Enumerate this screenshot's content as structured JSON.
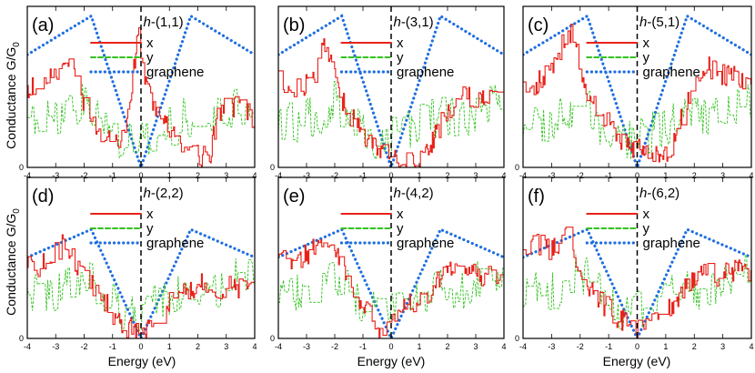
{
  "chart_data": {
    "type": "line",
    "layout": "2x3 panel grid",
    "ylabel": "Conductance G/G0",
    "ylabel_main": "Conductance G/G",
    "ylabel_subscript": "0",
    "xlabel": "Energy (eV)",
    "xlim": [
      -4,
      4
    ],
    "xticks": [
      -4,
      -3,
      -2,
      -1,
      0,
      1,
      2,
      3,
      4
    ],
    "ylim": [
      0,
      1
    ],
    "ytick_label": "0",
    "fermi_line_x": 0,
    "legend_entries": [
      "x",
      "y",
      "graphene"
    ],
    "series_colors": {
      "x": "#e8221b",
      "y": "#33c21f",
      "graphene": "#1f6fe0"
    },
    "panels": [
      {
        "label": "(a)",
        "title_italic": "h",
        "title_rest": "-(1,1)",
        "graphene_scale": 1.0,
        "seed": 11,
        "x_anchors": [
          [
            -4,
            0.48
          ],
          [
            -3.5,
            0.52
          ],
          [
            -3.0,
            0.6
          ],
          [
            -2.6,
            0.7
          ],
          [
            -2.4,
            0.62
          ],
          [
            -2.2,
            0.5
          ],
          [
            -1.9,
            0.35
          ],
          [
            -1.6,
            0.25
          ],
          [
            -1.3,
            0.2
          ],
          [
            -1.0,
            0.18
          ],
          [
            -0.7,
            0.15
          ],
          [
            -0.5,
            0.3
          ],
          [
            -0.3,
            0.55
          ],
          [
            -0.1,
            0.82
          ],
          [
            0.1,
            0.6
          ],
          [
            0.4,
            0.4
          ],
          [
            0.8,
            0.28
          ],
          [
            1.2,
            0.2
          ],
          [
            1.6,
            0.12
          ],
          [
            2.0,
            0.08
          ],
          [
            2.4,
            0.04
          ],
          [
            2.7,
            0.35
          ],
          [
            3.2,
            0.38
          ],
          [
            3.6,
            0.35
          ],
          [
            4,
            0.3
          ]
        ]
      },
      {
        "label": "(b)",
        "title_italic": "h",
        "title_rest": "-(3,1)",
        "graphene_scale": 1.0,
        "seed": 23,
        "x_anchors": [
          [
            -4,
            0.55
          ],
          [
            -3.5,
            0.5
          ],
          [
            -3.0,
            0.52
          ],
          [
            -2.6,
            0.62
          ],
          [
            -2.4,
            0.8
          ],
          [
            -2.2,
            0.72
          ],
          [
            -1.9,
            0.5
          ],
          [
            -1.6,
            0.35
          ],
          [
            -1.3,
            0.28
          ],
          [
            -1.0,
            0.2
          ],
          [
            -0.7,
            0.15
          ],
          [
            -0.4,
            0.1
          ],
          [
            0,
            0.06
          ],
          [
            0.5,
            0.04
          ],
          [
            1.0,
            0.02
          ],
          [
            1.4,
            0.15
          ],
          [
            1.8,
            0.28
          ],
          [
            2.2,
            0.4
          ],
          [
            2.6,
            0.45
          ],
          [
            3.0,
            0.4
          ],
          [
            3.5,
            0.42
          ],
          [
            4,
            0.4
          ]
        ]
      },
      {
        "label": "(c)",
        "title_italic": "h",
        "title_rest": "-(5,1)",
        "graphene_scale": 1.0,
        "seed": 37,
        "x_anchors": [
          [
            -4,
            0.55
          ],
          [
            -3.6,
            0.5
          ],
          [
            -3.2,
            0.58
          ],
          [
            -2.8,
            0.7
          ],
          [
            -2.4,
            0.85
          ],
          [
            -2.2,
            0.8
          ],
          [
            -1.9,
            0.55
          ],
          [
            -1.6,
            0.4
          ],
          [
            -1.2,
            0.3
          ],
          [
            -0.8,
            0.22
          ],
          [
            -0.4,
            0.15
          ],
          [
            0,
            0.12
          ],
          [
            0.4,
            0.1
          ],
          [
            0.9,
            0.05
          ],
          [
            1.2,
            0.12
          ],
          [
            1.6,
            0.35
          ],
          [
            2.0,
            0.55
          ],
          [
            2.5,
            0.62
          ],
          [
            3.0,
            0.58
          ],
          [
            3.5,
            0.56
          ],
          [
            4,
            0.52
          ]
        ]
      },
      {
        "label": "(d)",
        "title_italic": "h",
        "title_rest": "-(2,2)",
        "graphene_scale": 0.72,
        "seed": 41,
        "x_anchors": [
          [
            -4,
            0.5
          ],
          [
            -3.6,
            0.45
          ],
          [
            -3.2,
            0.48
          ],
          [
            -2.8,
            0.58
          ],
          [
            -2.5,
            0.55
          ],
          [
            -2.2,
            0.42
          ],
          [
            -1.9,
            0.35
          ],
          [
            -1.6,
            0.32
          ],
          [
            -1.3,
            0.25
          ],
          [
            -1.0,
            0.15
          ],
          [
            -0.7,
            0.1
          ],
          [
            -0.3,
            0.05
          ],
          [
            0,
            0.02
          ],
          [
            0.4,
            0.08
          ],
          [
            0.8,
            0.18
          ],
          [
            1.2,
            0.3
          ],
          [
            1.6,
            0.28
          ],
          [
            2.0,
            0.34
          ],
          [
            2.4,
            0.32
          ],
          [
            2.8,
            0.3
          ],
          [
            3.2,
            0.32
          ],
          [
            3.6,
            0.3
          ],
          [
            4,
            0.28
          ]
        ]
      },
      {
        "label": "(e)",
        "title_italic": "h",
        "title_rest": "-(4,2)",
        "graphene_scale": 0.72,
        "seed": 53,
        "x_anchors": [
          [
            -4,
            0.55
          ],
          [
            -3.6,
            0.48
          ],
          [
            -3.2,
            0.5
          ],
          [
            -2.8,
            0.55
          ],
          [
            -2.4,
            0.6
          ],
          [
            -2.2,
            0.55
          ],
          [
            -1.9,
            0.5
          ],
          [
            -1.6,
            0.42
          ],
          [
            -1.3,
            0.3
          ],
          [
            -1.0,
            0.22
          ],
          [
            -0.7,
            0.12
          ],
          [
            -0.4,
            0.05
          ],
          [
            -0.2,
            0.02
          ],
          [
            0.2,
            0.2
          ],
          [
            0.6,
            0.25
          ],
          [
            1.0,
            0.22
          ],
          [
            1.4,
            0.3
          ],
          [
            1.8,
            0.4
          ],
          [
            2.2,
            0.45
          ],
          [
            2.5,
            0.38
          ],
          [
            3.0,
            0.4
          ],
          [
            3.5,
            0.38
          ],
          [
            4,
            0.36
          ]
        ]
      },
      {
        "label": "(f)",
        "title_italic": "h",
        "title_rest": "-(6,2)",
        "graphene_scale": 0.72,
        "seed": 67,
        "x_anchors": [
          [
            -4,
            0.55
          ],
          [
            -3.6,
            0.6
          ],
          [
            -3.2,
            0.55
          ],
          [
            -2.8,
            0.58
          ],
          [
            -2.5,
            0.65
          ],
          [
            -2.3,
            0.5
          ],
          [
            -2.0,
            0.4
          ],
          [
            -1.7,
            0.32
          ],
          [
            -1.4,
            0.25
          ],
          [
            -1.0,
            0.18
          ],
          [
            -0.6,
            0.12
          ],
          [
            -0.3,
            0.08
          ],
          [
            0,
            0.05
          ],
          [
            0.4,
            0.1
          ],
          [
            0.8,
            0.15
          ],
          [
            1.2,
            0.2
          ],
          [
            1.6,
            0.3
          ],
          [
            2.0,
            0.35
          ],
          [
            2.4,
            0.45
          ],
          [
            2.6,
            0.35
          ],
          [
            3.0,
            0.4
          ],
          [
            3.5,
            0.42
          ],
          [
            4,
            0.4
          ]
        ]
      }
    ],
    "y_anchors": [
      [
        -4,
        0.3
      ],
      [
        -3.5,
        0.28
      ],
      [
        -3.0,
        0.3
      ],
      [
        -2.5,
        0.33
      ],
      [
        -2.0,
        0.42
      ],
      [
        -1.5,
        0.3
      ],
      [
        -1.0,
        0.22
      ],
      [
        -0.5,
        0.15
      ],
      [
        0,
        0.18
      ],
      [
        0.5,
        0.22
      ],
      [
        1.0,
        0.26
      ],
      [
        1.5,
        0.3
      ],
      [
        2.0,
        0.32
      ],
      [
        2.5,
        0.28
      ],
      [
        3.0,
        0.35
      ],
      [
        3.5,
        0.38
      ],
      [
        4,
        0.42
      ]
    ]
  }
}
